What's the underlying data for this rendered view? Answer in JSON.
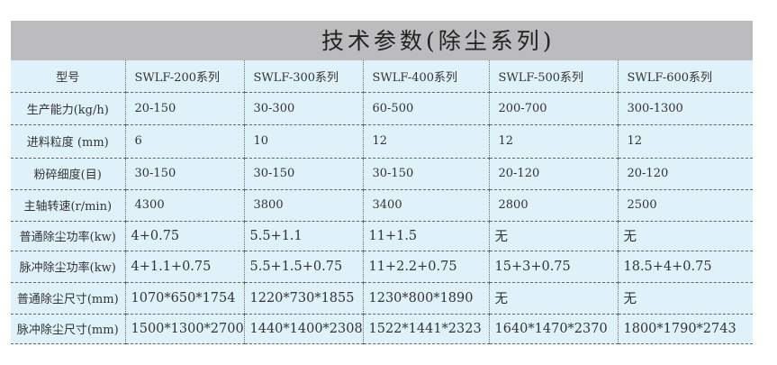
{
  "title": "技术参数(除尘系列)",
  "table": {
    "header": [
      "型号",
      "SWLF-200系列",
      "SWLF-300系列",
      "SWLF-400系列",
      "SWLF-500系列",
      "SWLF-600系列"
    ],
    "rows": [
      [
        "生产能力(kg/h)",
        "20-150",
        "30-300",
        "60-500",
        "200-700",
        "300-1300"
      ],
      [
        "进料粒度 (mm)",
        "6",
        "10",
        "12",
        "12",
        "12"
      ],
      [
        "粉碎细度(目)",
        "30-150",
        "30-150",
        "30-150",
        "20-120",
        "20-120"
      ],
      [
        "主轴转速(r/min)",
        "4300",
        "3800",
        "3400",
        "2800",
        "2500"
      ],
      [
        "普通除尘功率(kw)",
        "4+0.75",
        "5.5+1.1",
        "11+1.5",
        "无",
        "无"
      ],
      [
        "脉冲除尘功率(kw)",
        "4+1.1+0.75",
        "5.5+1.5+0.75",
        "11+2.2+0.75",
        "15+3+0.75",
        "18.5+4+0.75"
      ],
      [
        "普通除尘尺寸(mm)",
        "1070*650*1754",
        "1220*730*1855",
        "1230*800*1890",
        "无",
        "无"
      ],
      [
        "脉冲除尘尺寸(mm)",
        "1500*1300*2700",
        "1440*1400*2308",
        "1522*1441*2323",
        "1640*1470*2370",
        "1800*1790*2743"
      ]
    ]
  }
}
